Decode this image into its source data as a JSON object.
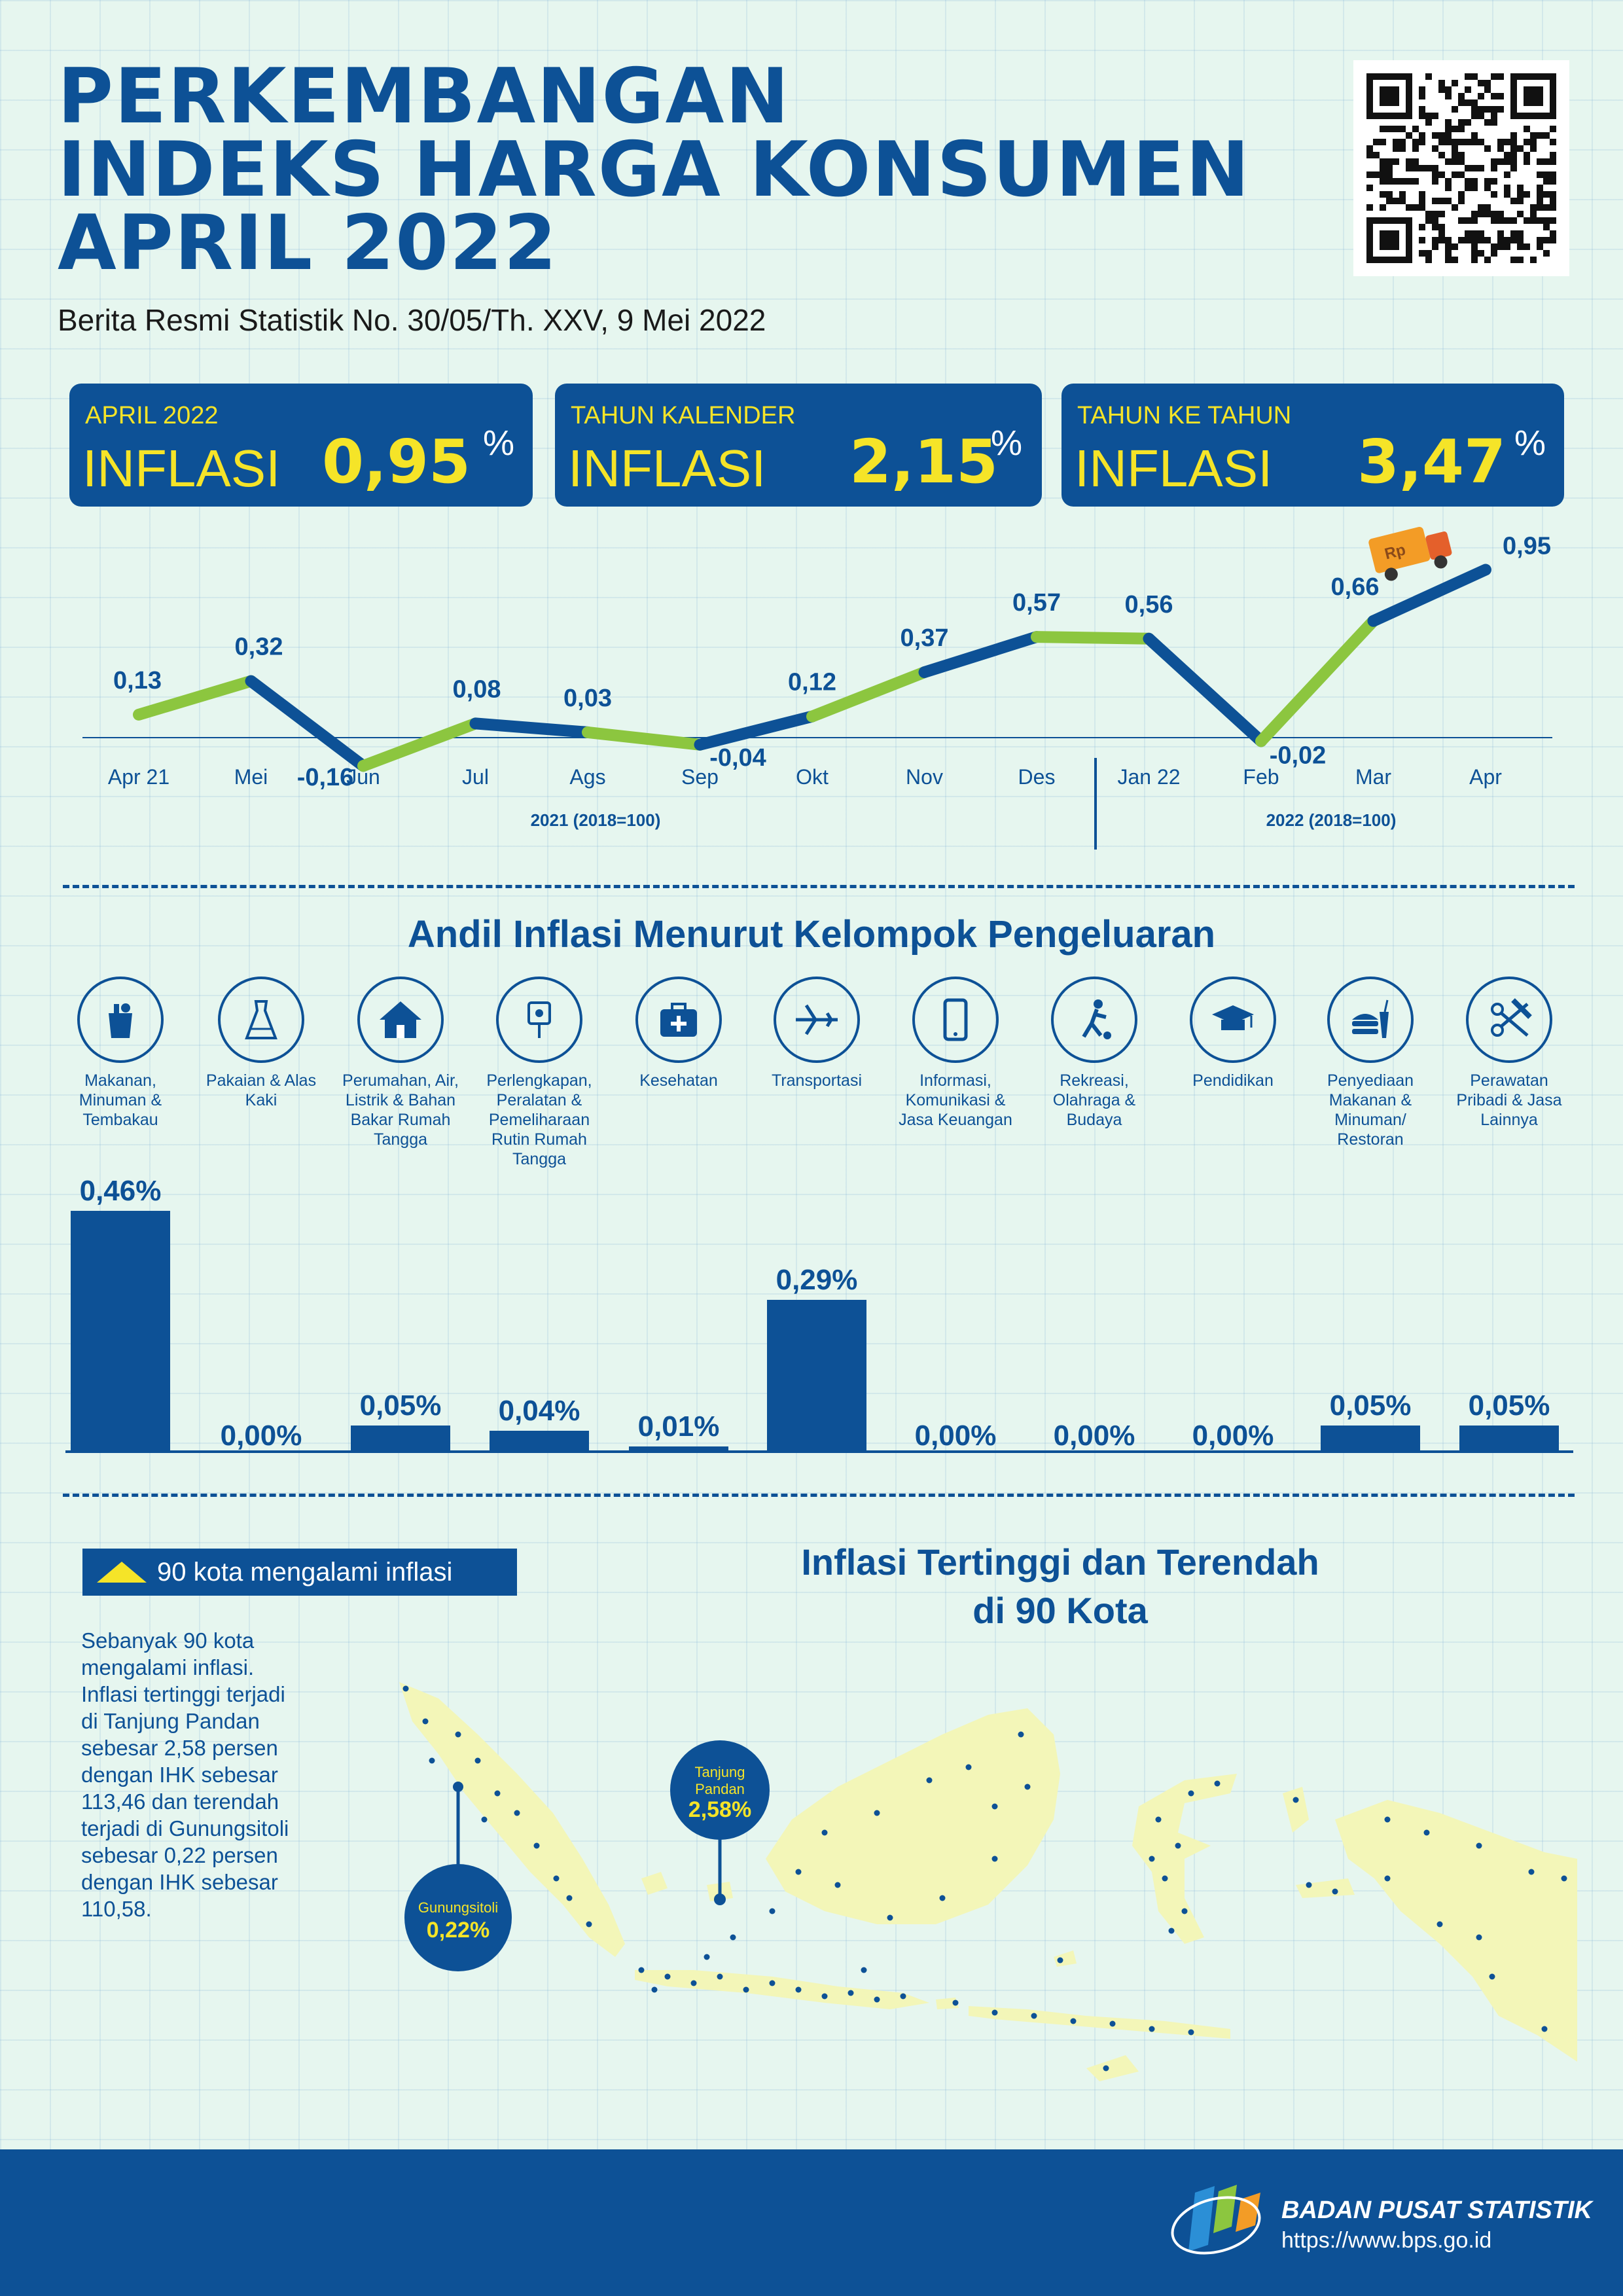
{
  "header": {
    "title_lines": [
      "PERKEMBANGAN",
      "INDEKS HARGA KONSUMEN",
      "APRIL 2022"
    ],
    "subtitle": "Berita Resmi Statistik No. 30/05/Th. XXV, 9 Mei 2022"
  },
  "cards": [
    {
      "caption": "APRIL 2022",
      "word": "INFLASI",
      "value": "0,95",
      "unit": "%"
    },
    {
      "caption": "TAHUN KALENDER",
      "word": "INFLASI",
      "value": "2,15",
      "unit": "%"
    },
    {
      "caption": "TAHUN KE TAHUN",
      "word": "INFLASI",
      "value": "3,47",
      "unit": "%"
    }
  ],
  "colors": {
    "navy": "#0d5196",
    "green": "#8cc63f",
    "yellow": "#f5e428",
    "map": "#f3f6b8",
    "background": "#e6f6ef"
  },
  "chart_data": [
    {
      "type": "line",
      "title": "",
      "categories": [
        "Apr 21",
        "Mei",
        "Jun",
        "Jul",
        "Ags",
        "Sep",
        "Okt",
        "Nov",
        "Des",
        "Jan 22",
        "Feb",
        "Mar",
        "Apr"
      ],
      "values": [
        0.13,
        0.32,
        -0.16,
        0.08,
        0.03,
        -0.04,
        0.12,
        0.37,
        0.57,
        0.56,
        -0.02,
        0.66,
        0.95
      ],
      "value_labels": [
        "0,13",
        "0,32",
        "-0,16",
        "0,08",
        "0,03",
        "-0,04",
        "0,12",
        "0,37",
        "0,57",
        "0,56",
        "-0,02",
        "0,66",
        "0,95"
      ],
      "period_labels": [
        "2021 (2018=100)",
        "2022 (2018=100)"
      ],
      "ylim": [
        -0.2,
        1.0
      ]
    },
    {
      "type": "bar",
      "title": "Andil Inflasi Menurut Kelompok Pengeluaran",
      "categories": [
        {
          "label": "Makanan, Minuman & Tembakau",
          "icon": "grocery-bag-icon"
        },
        {
          "label": "Pakaian & Alas Kaki",
          "icon": "dress-icon"
        },
        {
          "label": "Perumahan, Air, Listrik & Bahan Bakar Rumah Tangga",
          "icon": "house-icon"
        },
        {
          "label": "Perlengkapan, Peralatan & Pemeliharaan Rutin Rumah Tangga",
          "icon": "plug-icon"
        },
        {
          "label": "Kesehatan",
          "icon": "medical-kit-icon"
        },
        {
          "label": "Transportasi",
          "icon": "airplane-icon"
        },
        {
          "label": "Informasi, Komunikasi & Jasa Keuangan",
          "icon": "phone-icon"
        },
        {
          "label": "Rekreasi, Olahraga & Budaya",
          "icon": "soccer-player-icon"
        },
        {
          "label": "Pendidikan",
          "icon": "graduation-cap-icon"
        },
        {
          "label": "Penyediaan Makanan & Minuman/ Restoran",
          "icon": "fast-food-icon"
        },
        {
          "label": "Perawatan Pribadi & Jasa Lainnya",
          "icon": "scissors-comb-icon"
        }
      ],
      "values": [
        0.46,
        0.0,
        0.05,
        0.04,
        0.01,
        0.29,
        0.0,
        0.0,
        0.0,
        0.05,
        0.05
      ],
      "value_labels": [
        "0,46%",
        "0,00%",
        "0,05%",
        "0,04%",
        "0,01%",
        "0,29%",
        "0,00%",
        "0,00%",
        "0,00%",
        "0,05%",
        "0,05%"
      ],
      "ylim": [
        0,
        0.46
      ]
    }
  ],
  "cities": {
    "legend": "90 kota mengalami inflasi",
    "title_lines": [
      "Inflasi Tertinggi dan Terendah",
      "di 90 Kota"
    ],
    "description": "Sebanyak 90 kota mengalami inflasi. Inflasi tertinggi terjadi di Tanjung Pandan sebesar 2,58 persen dengan IHK sebesar 113,46 dan terendah terjadi di Gunungsitoli sebesar 0,22 persen dengan IHK sebesar 110,58.",
    "highest": {
      "city": "Tanjung Pandan",
      "value": "2,58%"
    },
    "lowest": {
      "city": "Gunungsitoli",
      "value": "0,22%"
    }
  },
  "footer": {
    "org": "BADAN PUSAT STATISTIK",
    "url": "https://www.bps.go.id"
  }
}
